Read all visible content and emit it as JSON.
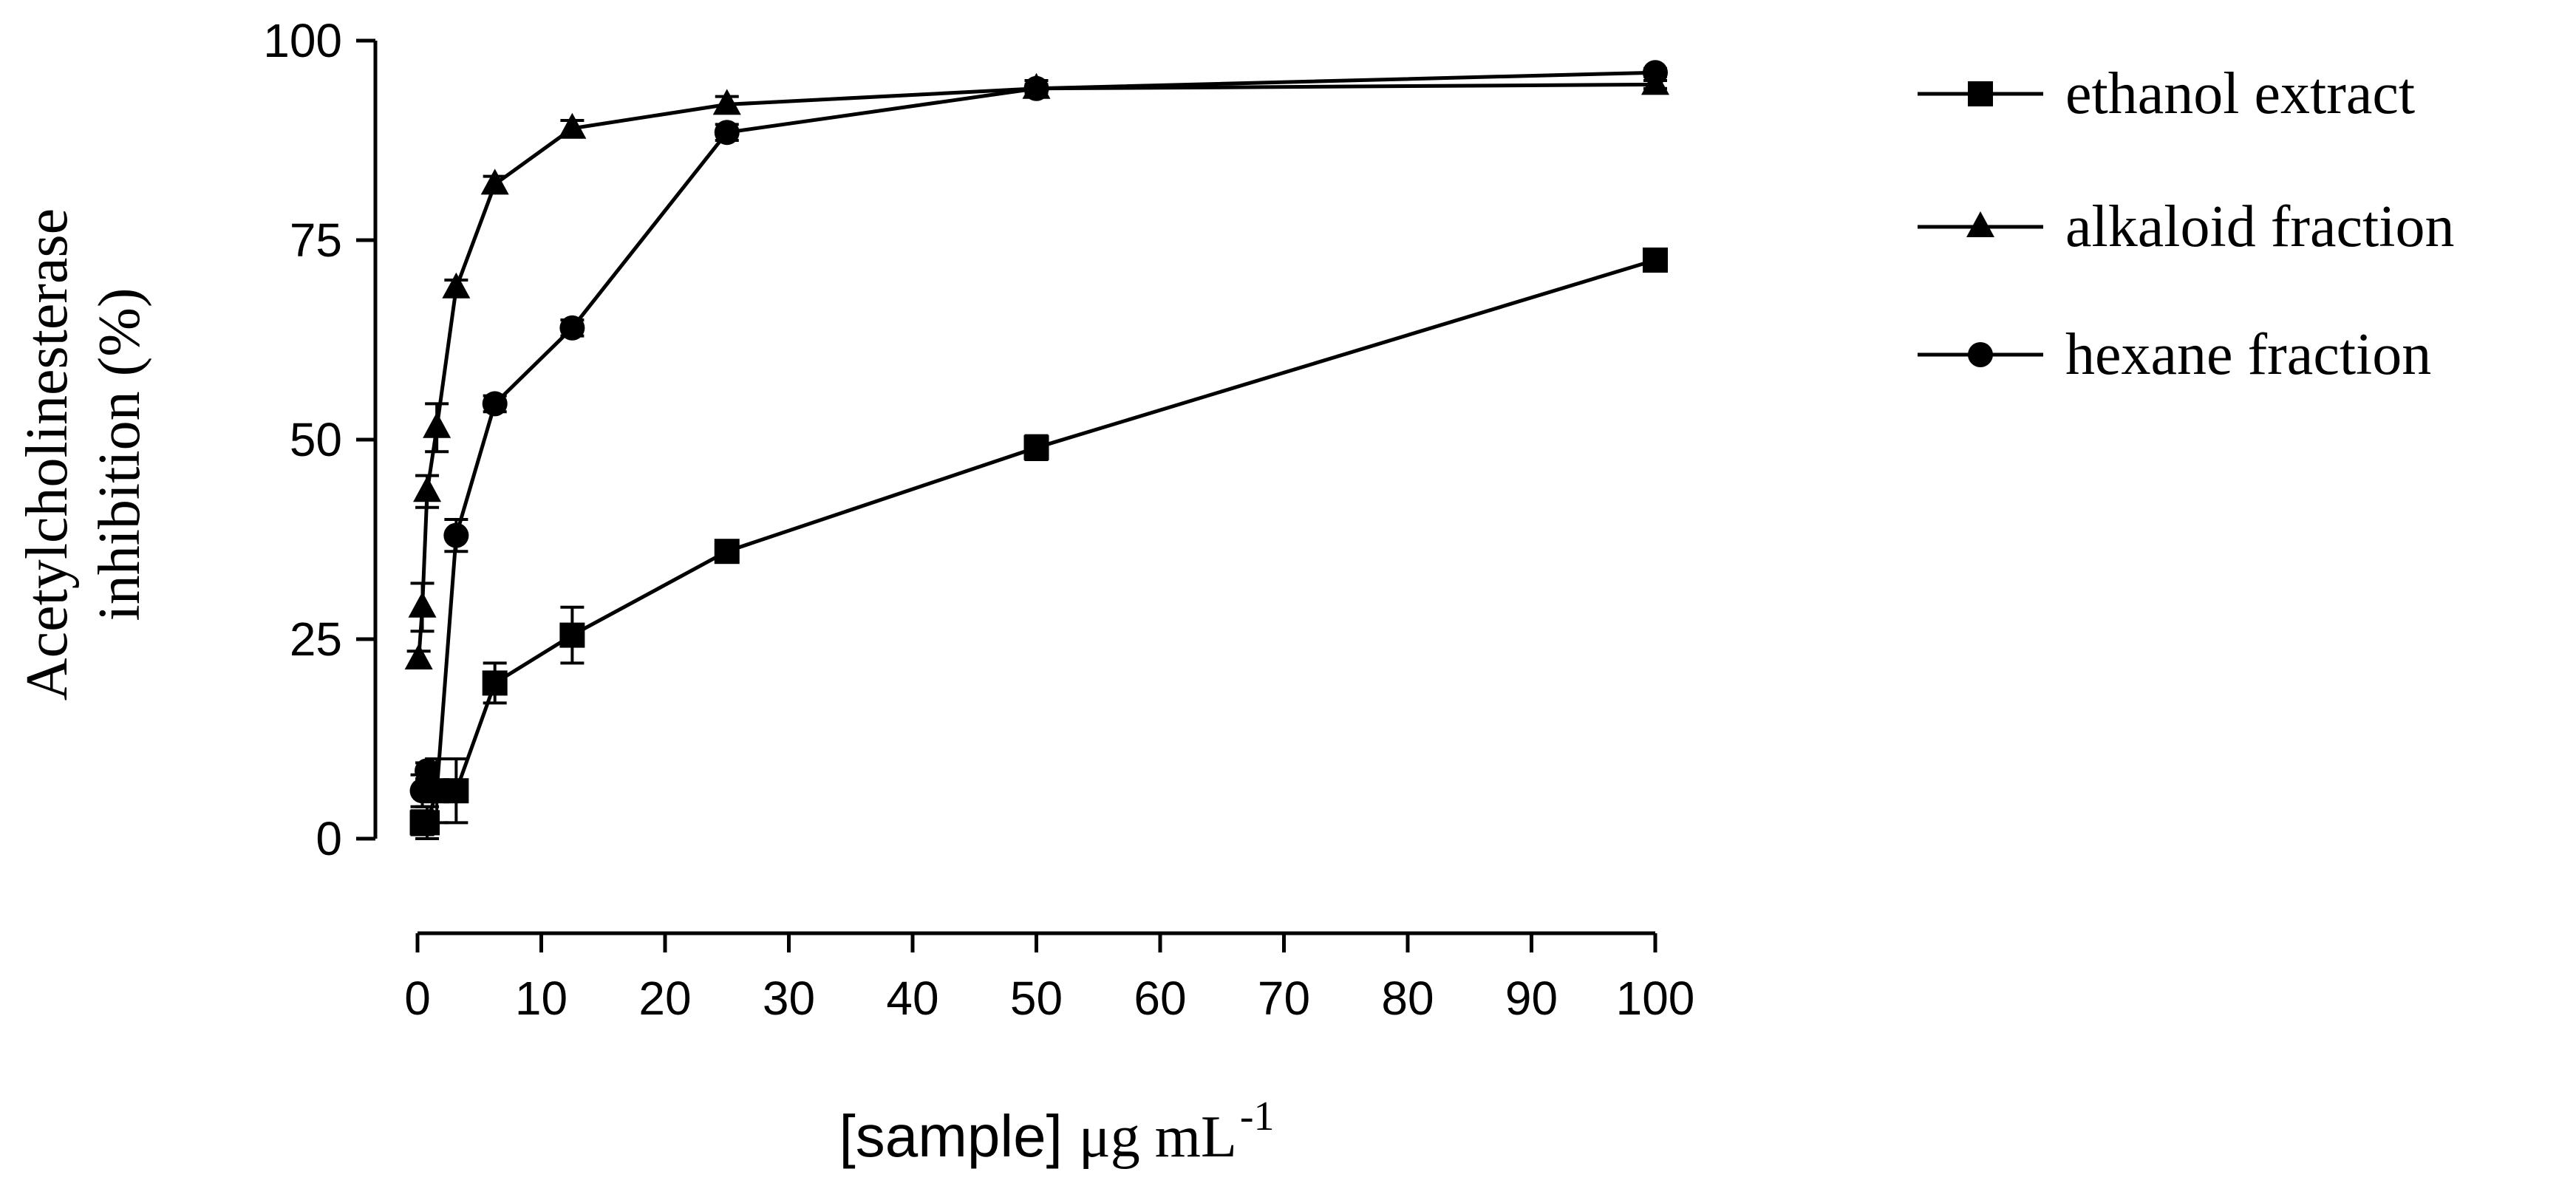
{
  "chart_data": {
    "type": "line",
    "ylabel_lines": [
      "Acetylcholinesterase",
      "inhibition (%)"
    ],
    "xlabel": {
      "part1": "[sample]",
      "part2": "μg mL",
      "superscript": "-1"
    },
    "xlim": [
      0,
      100
    ],
    "ylim": [
      0,
      100
    ],
    "xticks": [
      0,
      10,
      20,
      30,
      40,
      50,
      60,
      70,
      80,
      90,
      100
    ],
    "yticks": [
      0,
      25,
      50,
      75,
      100
    ],
    "grid": false,
    "legend_position": "top-right",
    "series": [
      {
        "name": "ethanol extract",
        "marker": "square",
        "x": [
          0.39,
          0.78,
          1.56,
          3.125,
          6.25,
          12.5,
          25,
          50,
          100
        ],
        "y": [
          2,
          2,
          6,
          6,
          19.5,
          25.5,
          36,
          49,
          72.5
        ],
        "err": [
          1.5,
          2,
          4,
          4,
          2.5,
          3.5,
          1,
          1.5,
          1
        ]
      },
      {
        "name": "alkaloid fraction",
        "marker": "triangle",
        "x": [
          0.1,
          0.39,
          0.78,
          1.56,
          3.125,
          6.25,
          12.5,
          25,
          50,
          100
        ],
        "y": [
          22.5,
          29,
          43.5,
          51.5,
          69,
          82,
          89,
          92,
          94,
          94.5
        ],
        "err": [
          1,
          3,
          2,
          3,
          1,
          1,
          1,
          1,
          1,
          0.5
        ]
      },
      {
        "name": "hexane fraction",
        "marker": "circle",
        "x": [
          0.39,
          0.78,
          1.56,
          3.125,
          6.25,
          12.5,
          25,
          50,
          100
        ],
        "y": [
          6,
          8.5,
          6,
          38,
          54.5,
          64,
          88.5,
          94,
          96
        ],
        "err": [
          2,
          1,
          1,
          2,
          1,
          1,
          1,
          0.5,
          0.5
        ]
      }
    ]
  }
}
